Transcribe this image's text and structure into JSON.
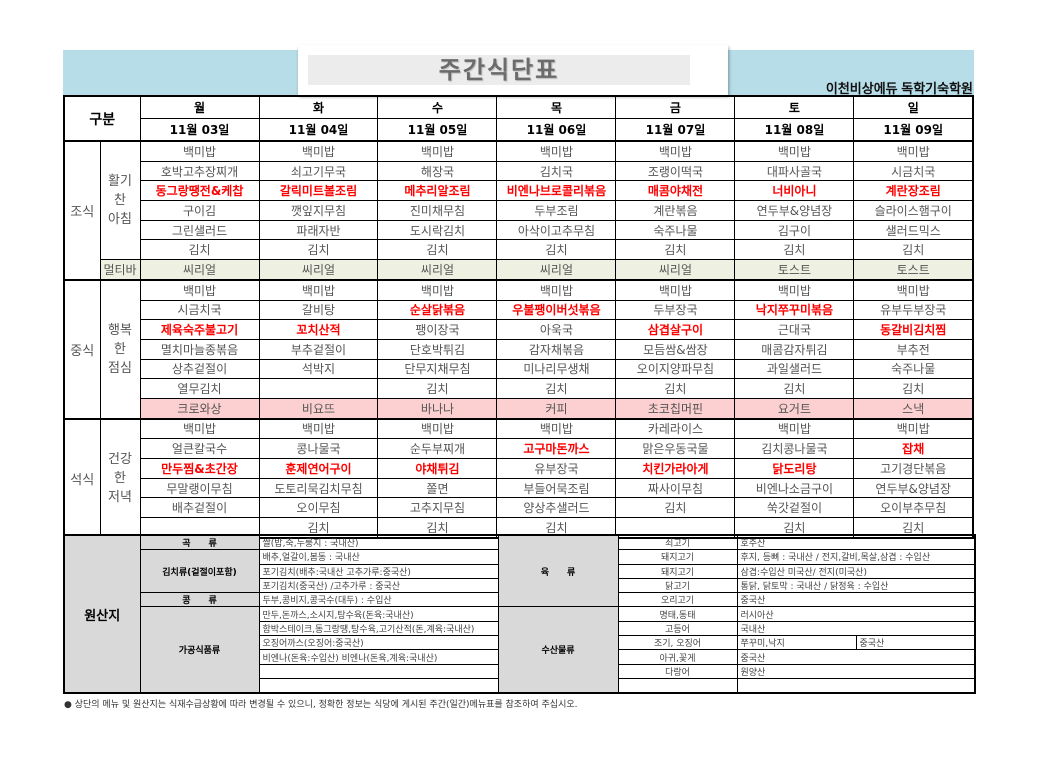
{
  "header": {
    "title": "주간식단표",
    "organization": "이천비상에듀 독학기숙학원",
    "band_color": "#b7dde8"
  },
  "table": {
    "corner": "구분",
    "days": [
      "월",
      "화",
      "수",
      "목",
      "금",
      "토",
      "일"
    ],
    "dates": [
      "11월 03일",
      "11월 04일",
      "11월 05일",
      "11월 06일",
      "11월 07일",
      "11월 08일",
      "11월 09일"
    ]
  },
  "colors": {
    "highlight": "#ff0000",
    "multibar_bg": "#eef1e2",
    "snack_bg": "#fcd0d0",
    "origin_label_bg": "#d9d9d9"
  },
  "meals": [
    {
      "label": "조식",
      "sub": "활기\n찬\n아침",
      "rows": [
        [
          "백미밥",
          "백미밥",
          "백미밥",
          "백미밥",
          "백미밥",
          "백미밥",
          "백미밥"
        ],
        [
          "호박고추장찌개",
          "쇠고기무국",
          "해장국",
          "김치국",
          "조랭이떡국",
          "대파사골국",
          "시금치국"
        ],
        [
          {
            "text": "동그랑땡전&케찹",
            "highlight": true
          },
          {
            "text": "갈릭미트볼조림",
            "highlight": true
          },
          {
            "text": "메추리알조림",
            "highlight": true
          },
          {
            "text": "비엔나브로콜리볶음",
            "highlight": true
          },
          {
            "text": "매콤야채전",
            "highlight": true
          },
          {
            "text": "너비아니",
            "highlight": true
          },
          {
            "text": "계란장조림",
            "highlight": true
          }
        ],
        [
          "구이김",
          "깻잎지무침",
          "진미채무침",
          "두부조림",
          "계란볶음",
          "연두부&양념장",
          "슬라이스햄구이"
        ],
        [
          "그린샐러드",
          "파래자반",
          "도시락김치",
          "아삭이고추무침",
          "숙주나물",
          "김구이",
          "샐러드믹스"
        ],
        [
          "김치",
          "김치",
          "김치",
          "김치",
          "김치",
          "김치",
          "김치"
        ]
      ],
      "extra": {
        "label": "멀티바",
        "items": [
          "씨리얼",
          "씨리얼",
          "씨리얼",
          "씨리얼",
          "씨리얼",
          "토스트",
          "토스트"
        ]
      }
    },
    {
      "label": "중식",
      "sub": "행복\n한\n점심",
      "rows": [
        [
          "백미밥",
          "백미밥",
          "백미밥",
          "백미밥",
          "백미밥",
          "백미밥",
          "백미밥"
        ],
        [
          "시금치국",
          "갈비탕",
          {
            "text": "순살닭볶음",
            "highlight": true
          },
          {
            "text": "우불팽이버섯볶음",
            "highlight": true
          },
          "두부장국",
          {
            "text": "낙지쭈꾸미볶음",
            "highlight": true
          },
          "유부두부장국"
        ],
        [
          {
            "text": "제육숙주불고기",
            "highlight": true
          },
          {
            "text": "꼬치산적",
            "highlight": true
          },
          "팽이장국",
          "아욱국",
          {
            "text": "삼겹살구이",
            "highlight": true
          },
          "근대국",
          {
            "text": "동갈비김치찜",
            "highlight": true
          }
        ],
        [
          "멸치마늘종볶음",
          "부추겉절이",
          "단호박튀김",
          "감자채볶음",
          "모듬쌈&쌈장",
          "매콤감자튀김",
          "부추전"
        ],
        [
          "상추겉절이",
          "석박지",
          "단무지채무침",
          "미나리무생채",
          "오이지양파무침",
          "과일샐러드",
          "숙주나물"
        ],
        [
          "열무김치",
          "",
          "김치",
          "김치",
          "김치",
          "김치",
          "김치"
        ]
      ],
      "snack": [
        "크로와상",
        "비요뜨",
        "바나나",
        "커피",
        "초코칩머핀",
        "요거트",
        "스낵"
      ]
    },
    {
      "label": "석식",
      "sub": "건강\n한\n저녁",
      "rows": [
        [
          "백미밥",
          "백미밥",
          "백미밥",
          "백미밥",
          "카레라이스",
          "백미밥",
          "백미밥"
        ],
        [
          "얼큰칼국수",
          "콩나물국",
          "순두부찌개",
          {
            "text": "고구마돈까스",
            "highlight": true
          },
          "맑은우동국물",
          "김치콩나물국",
          {
            "text": "잡채",
            "highlight": true
          }
        ],
        [
          {
            "text": "만두찜&초간장",
            "highlight": true
          },
          {
            "text": "훈제연어구이",
            "highlight": true
          },
          {
            "text": "야채튀김",
            "highlight": true
          },
          "유부장국",
          {
            "text": "치킨가라아게",
            "highlight": true
          },
          {
            "text": "닭도리탕",
            "highlight": true
          },
          "고기경단볶음"
        ],
        [
          "무말랭이무침",
          "도토리묵김치무침",
          "쫄면",
          "부들어묵조림",
          "짜사이무침",
          "비엔나소금구이",
          "연두부&양념장"
        ],
        [
          "배추겉절이",
          "오이무침",
          "고추지무침",
          "양상추샐러드",
          "김치",
          "쑥갓겉절이",
          "오이부추무침"
        ],
        [
          "",
          "김치",
          "김치",
          "김치",
          "",
          "김치",
          "김치"
        ]
      ]
    }
  ],
  "origin": {
    "label": "원산지",
    "left": [
      {
        "label": "곡　　류",
        "rows": [
          "쌀(밥,죽,누룽지 : 국내산)"
        ]
      },
      {
        "label": "김치류(겉절이포함)",
        "rows": [
          "배추,얼갈이,봄동 : 국내산",
          "포기김치(배추:국내산 고추가루:중국산)",
          "포기김치(중국산) /고추가루 : 중국산"
        ]
      },
      {
        "label": "콩　　류",
        "rows": [
          "두부,콩비지,콩국수(대두) : 수입산"
        ]
      },
      {
        "label": "가공식품류",
        "rows": [
          "만두,돈까스,소시지,탕수육(돈육:국내산)",
          "함박스테이크,동그랑땡,탕수육,고기산적(돈,계육:국내산)",
          "오징어까스(오징어:중국산)",
          "비엔나(돈육:수입산) 비엔나(돈육,계육:국내산)",
          "",
          ""
        ]
      }
    ],
    "right": [
      {
        "label": "육　　류",
        "rows": [
          [
            "쇠고기",
            "호주산"
          ],
          [
            "돼지고기",
            "후지, 등뼈 : 국내산 / 전지,갈비,목살,삼겹 : 수입산"
          ],
          [
            "돼지고기",
            "삼겹:수입산 미국산/ 전지(미국산)"
          ],
          [
            "닭고기",
            "통닭, 닭토막 : 국내산 / 닭정육 : 수입산"
          ],
          [
            "오리고기",
            "중국산"
          ]
        ]
      },
      {
        "label": "수산물류",
        "rows": [
          [
            "명태,동태",
            "러시아산"
          ],
          [
            "고등어",
            "국내산"
          ],
          [
            "조기, 오징어",
            "쭈꾸미,낙지",
            "중국산"
          ],
          [
            "아귀,꽃게",
            "중국산"
          ],
          [
            "다랑어",
            "원양산"
          ],
          [
            "",
            ""
          ]
        ]
      }
    ]
  },
  "footer": "● 상단의 메뉴 및 원산지는 식재수급상황에 따라 변경될 수 있으니, 정확한 정보는 식당에 게시된 주간(일간)메뉴표를 참조하여 주십시오."
}
